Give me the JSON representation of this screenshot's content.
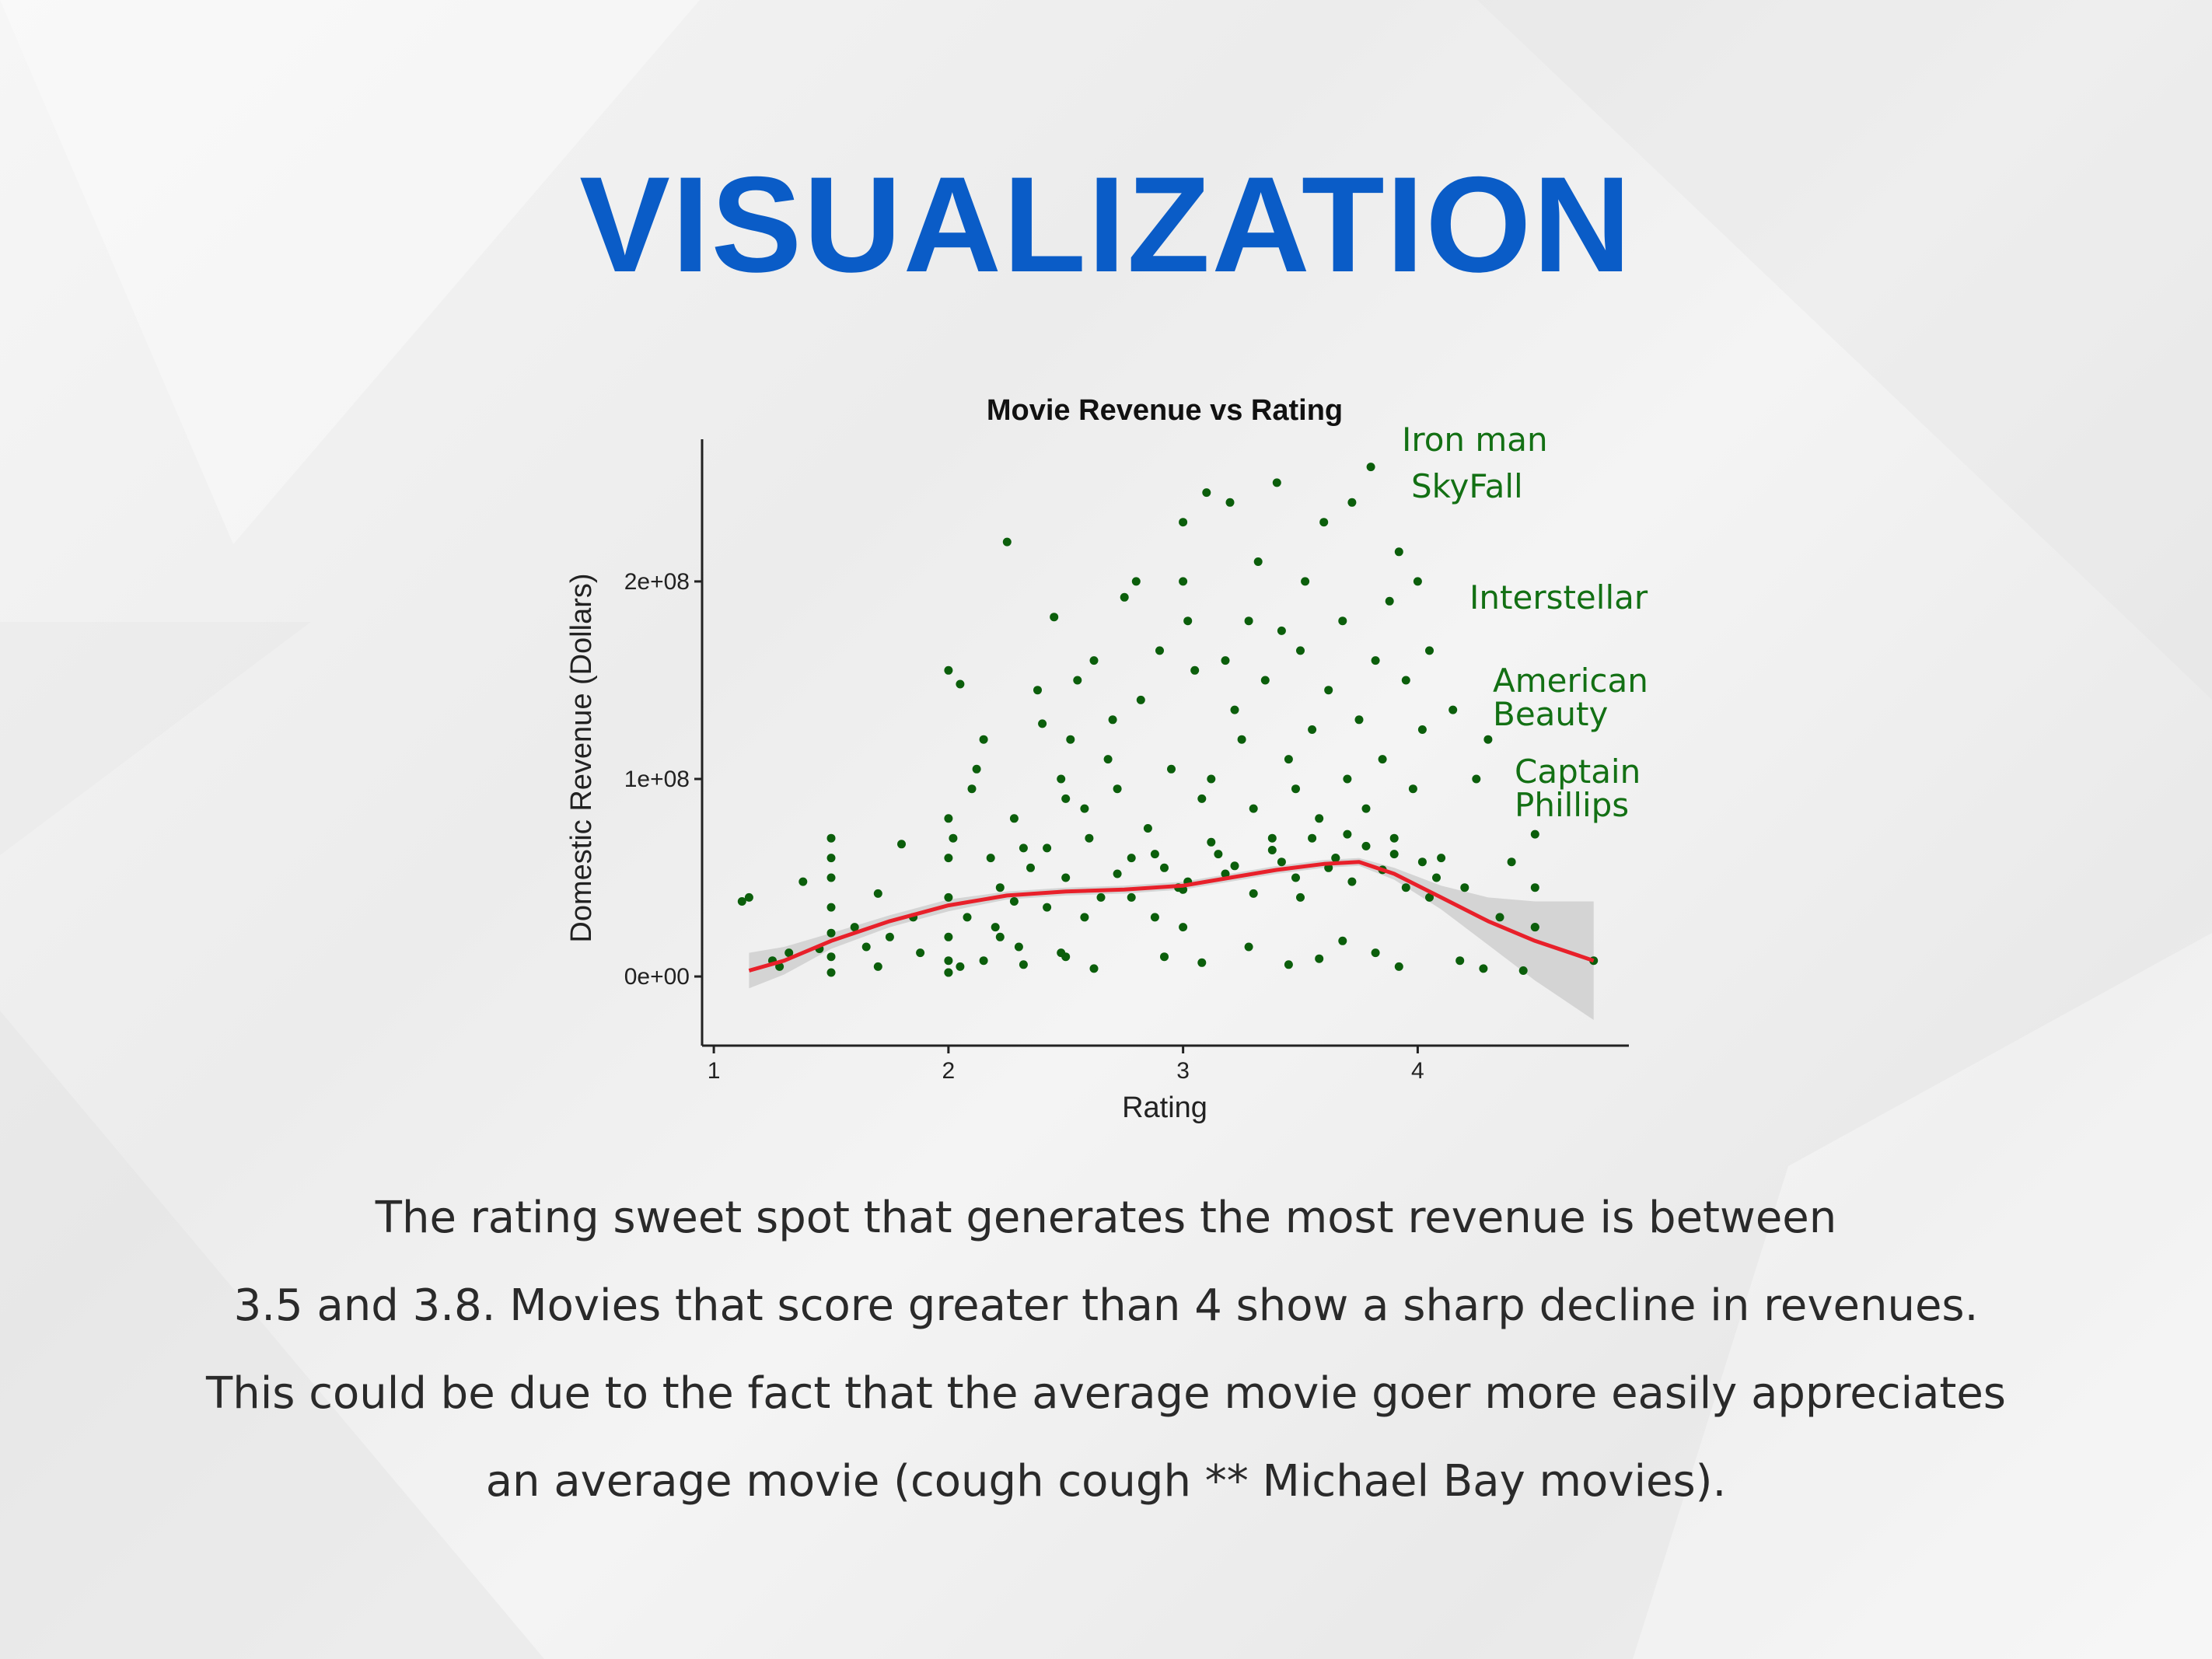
{
  "slide": {
    "title": "VISUALIZATION",
    "caption_lines": [
      "The rating sweet spot that generates the most revenue is between",
      "3.5 and 3.8. Movies that score greater than 4 show a sharp decline in revenues.",
      "This could be due to the fact that the average movie goer more easily appreciates",
      "an average movie (cough cough ** Michael Bay movies)."
    ],
    "colors": {
      "title": "#0a5cc7",
      "points": "#0b5e0b",
      "trend": "#e8202a",
      "band": "#cfcfcf",
      "annotations": "#137014"
    }
  },
  "chart_data": {
    "type": "scatter",
    "title": "Movie Revenue vs Rating",
    "xlabel": "Rating",
    "ylabel": "Domestic Revenue (Dollars)",
    "xlim": [
      0.95,
      4.9
    ],
    "ylim": [
      -35000000,
      272000000
    ],
    "xticks": [
      1,
      2,
      3,
      4
    ],
    "xtick_labels": [
      "1",
      "2",
      "3",
      "4"
    ],
    "yticks": [
      0,
      100000000,
      200000000
    ],
    "ytick_labels": [
      "0e+00",
      "1e+08",
      "2e+08"
    ],
    "grid": false,
    "legend": "none",
    "annotations": [
      {
        "text": "Iron man",
        "lines": [
          "Iron man"
        ]
      },
      {
        "text": "SkyFall",
        "lines": [
          "SkyFall"
        ]
      },
      {
        "text": "Interstellar",
        "lines": [
          "Interstellar"
        ]
      },
      {
        "text": "American Beauty",
        "lines": [
          "American",
          "Beauty"
        ]
      },
      {
        "text": "Captain Phillips",
        "lines": [
          "Captain",
          "Phillips"
        ]
      }
    ],
    "series": [
      {
        "x": [
          1.12,
          1.15,
          1.25,
          1.28,
          1.32,
          1.38,
          1.45,
          1.5,
          1.5,
          1.5,
          1.5,
          1.5,
          1.5,
          1.5,
          1.6,
          1.65,
          1.7,
          1.7,
          1.75,
          1.8,
          1.85,
          1.88,
          2.0,
          2.0,
          2.0,
          2.0,
          2.0,
          2.0,
          2.0,
          2.02,
          2.05,
          2.08,
          2.1,
          2.12,
          2.15,
          2.18,
          2.2,
          2.22,
          2.25,
          2.28,
          2.3,
          2.32,
          2.35,
          2.38,
          2.4,
          2.42,
          2.45,
          2.48,
          2.5,
          2.5,
          2.5,
          2.52,
          2.55,
          2.58,
          2.6,
          2.62,
          2.65,
          2.68,
          2.7,
          2.72,
          2.75,
          2.78,
          2.8,
          2.82,
          2.85,
          2.88,
          2.9,
          2.92,
          2.95,
          2.98,
          3.0,
          3.0,
          3.0,
          3.02,
          3.05,
          3.08,
          3.1,
          3.12,
          3.15,
          3.18,
          3.2,
          3.22,
          3.25,
          3.28,
          3.3,
          3.32,
          3.35,
          3.38,
          3.4,
          3.42,
          3.45,
          3.48,
          3.5,
          3.5,
          3.52,
          3.55,
          3.58,
          3.6,
          3.62,
          3.65,
          3.68,
          3.7,
          3.72,
          3.75,
          3.78,
          3.8,
          3.82,
          3.85,
          3.88,
          3.9,
          3.92,
          3.95,
          3.98,
          4.0,
          4.02,
          4.05,
          4.1,
          4.15,
          4.2,
          4.25,
          4.3,
          4.35,
          4.4,
          4.5,
          4.5,
          4.5,
          4.5,
          4.75,
          2.0,
          2.22,
          2.28,
          2.42,
          2.58,
          2.72,
          2.78,
          2.88,
          3.0,
          3.02,
          3.12,
          3.18,
          3.22,
          3.3,
          3.38,
          3.42,
          3.48,
          3.55,
          3.62,
          3.65,
          3.7,
          3.72,
          3.78,
          3.85,
          3.9,
          3.95,
          4.02,
          4.05,
          4.08,
          2.05,
          2.15,
          2.32,
          2.48,
          2.62,
          2.92,
          3.08,
          3.28,
          3.45,
          3.58,
          3.68,
          3.82,
          3.92,
          4.18,
          4.28,
          4.45
        ],
        "y": [
          38000000,
          40000000,
          8000000,
          5000000,
          12000000,
          48000000,
          14000000,
          70000000,
          60000000,
          50000000,
          35000000,
          22000000,
          10000000,
          2000000,
          25000000,
          15000000,
          5000000,
          42000000,
          20000000,
          67000000,
          30000000,
          12000000,
          155000000,
          80000000,
          60000000,
          40000000,
          20000000,
          8000000,
          2000000,
          70000000,
          148000000,
          30000000,
          95000000,
          105000000,
          120000000,
          60000000,
          25000000,
          45000000,
          220000000,
          80000000,
          15000000,
          65000000,
          55000000,
          145000000,
          128000000,
          35000000,
          182000000,
          100000000,
          90000000,
          50000000,
          10000000,
          120000000,
          150000000,
          85000000,
          70000000,
          160000000,
          40000000,
          110000000,
          130000000,
          95000000,
          192000000,
          60000000,
          200000000,
          140000000,
          75000000,
          30000000,
          165000000,
          55000000,
          105000000,
          45000000,
          230000000,
          200000000,
          25000000,
          180000000,
          155000000,
          90000000,
          245000000,
          100000000,
          62000000,
          160000000,
          240000000,
          135000000,
          120000000,
          180000000,
          85000000,
          210000000,
          150000000,
          70000000,
          250000000,
          175000000,
          110000000,
          95000000,
          165000000,
          40000000,
          200000000,
          125000000,
          80000000,
          230000000,
          145000000,
          60000000,
          180000000,
          100000000,
          240000000,
          130000000,
          85000000,
          258000000,
          160000000,
          110000000,
          190000000,
          70000000,
          215000000,
          150000000,
          95000000,
          200000000,
          125000000,
          165000000,
          60000000,
          135000000,
          45000000,
          100000000,
          120000000,
          30000000,
          58000000,
          25000000,
          72000000,
          45000000,
          25000000,
          8000000,
          2000000,
          20000000,
          38000000,
          65000000,
          30000000,
          52000000,
          40000000,
          62000000,
          44000000,
          48000000,
          68000000,
          52000000,
          56000000,
          42000000,
          64000000,
          58000000,
          50000000,
          70000000,
          55000000,
          60000000,
          72000000,
          48000000,
          66000000,
          54000000,
          62000000,
          45000000,
          58000000,
          40000000,
          50000000,
          5000000,
          8000000,
          6000000,
          12000000,
          4000000,
          10000000,
          7000000,
          15000000,
          6000000,
          9000000,
          18000000,
          12000000,
          5000000,
          8000000,
          4000000,
          3000000
        ]
      }
    ],
    "trend": {
      "x": [
        1.15,
        1.3,
        1.5,
        1.75,
        2.0,
        2.25,
        2.5,
        2.75,
        3.0,
        3.2,
        3.4,
        3.6,
        3.75,
        3.9,
        4.1,
        4.3,
        4.5,
        4.75
      ],
      "y": [
        3000000,
        8000000,
        18000000,
        28000000,
        36000000,
        41000000,
        43000000,
        44000000,
        46000000,
        50000000,
        54000000,
        57000000,
        58000000,
        52000000,
        40000000,
        28000000,
        18000000,
        8000000
      ],
      "band_upper": [
        12000000,
        15000000,
        22000000,
        31000000,
        39000000,
        43000000,
        45000000,
        46000000,
        48000000,
        52000000,
        56000000,
        59000000,
        60000000,
        55000000,
        46000000,
        40000000,
        38000000,
        38000000
      ],
      "band_lower": [
        -6000000,
        1000000,
        14000000,
        25000000,
        33000000,
        39000000,
        41000000,
        42000000,
        44000000,
        48000000,
        52000000,
        55000000,
        56000000,
        49000000,
        34000000,
        16000000,
        -2000000,
        -22000000
      ]
    }
  }
}
